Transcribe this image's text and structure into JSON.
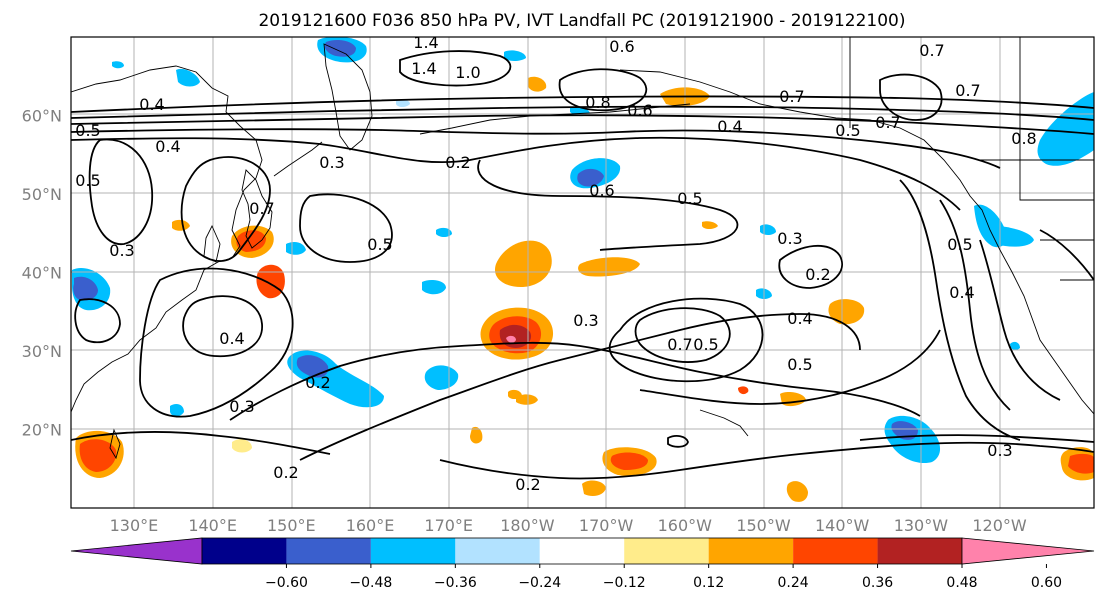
{
  "title": "2019121600 F036 850 hPa PV, IVT Landfall PC (2019121900 - 2019122100)",
  "map": {
    "lat_labels": [
      "60°N",
      "50°N",
      "40°N",
      "30°N",
      "20°N"
    ],
    "lat_values": [
      60,
      50,
      40,
      30,
      20
    ],
    "lon_labels": [
      "130°E",
      "140°E",
      "150°E",
      "160°E",
      "170°E",
      "180°W",
      "170°W",
      "160°W",
      "150°W",
      "140°W",
      "130°W",
      "120°W"
    ],
    "lon_values": [
      130,
      140,
      150,
      160,
      170,
      180,
      190,
      200,
      210,
      220,
      230,
      240
    ],
    "extent": {
      "lon_min": 122,
      "lon_max": 252,
      "lat_min": 10,
      "lat_max": 70
    },
    "gridlines": true
  },
  "colorbar": {
    "ticks": [
      "−0.60",
      "−0.48",
      "−0.36",
      "−0.24",
      "−0.12",
      "0.12",
      "0.24",
      "0.36",
      "0.48",
      "0.60"
    ],
    "colors": [
      "#9932cc",
      "#00008b",
      "#3a5fcd",
      "#00bfff",
      "#b2e2ff",
      "#ffffff",
      "#ffec8b",
      "#ffa500",
      "#ff4500",
      "#b22222",
      "#ff82ab"
    ],
    "extend": "both"
  },
  "contour_labels": [
    "1.4",
    "1.4",
    "1.0",
    "0.6",
    "0.8",
    "0.7",
    "0.7",
    "0.7",
    "0.7",
    "0.6",
    "0.4",
    "0.5",
    "0.8",
    "0.5",
    "0.3",
    "0.2",
    "0.6",
    "0.5",
    "0.5",
    "0.3",
    "0.2",
    "0.4",
    "0.3",
    "0.4",
    "0.5",
    "0.7",
    "0.5",
    "0.5",
    "0.4",
    "0.3",
    "0.3",
    "0.2",
    "0.2",
    "0.3",
    "0.4",
    "0.4",
    "0.5",
    "0.2",
    "0.7"
  ]
}
